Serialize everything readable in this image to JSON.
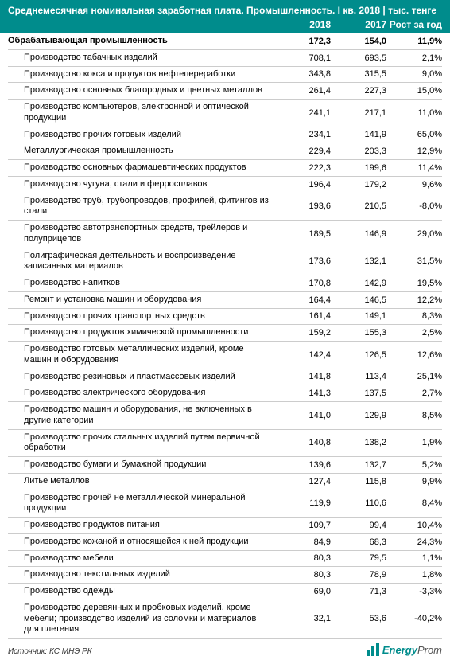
{
  "header": {
    "title": "Среднемесячная номинальная заработная плата. Промышленность. I кв. 2018 | тыс. тенге",
    "col_2018": "2018",
    "col_2017": "2017",
    "col_growth": "Рост за год"
  },
  "rows": [
    {
      "main": true,
      "name": "Обрабатывающая промышленность",
      "v2018": "172,3",
      "v2017": "154,0",
      "growth": "11,9%"
    },
    {
      "main": false,
      "name": "Производство табачных изделий",
      "v2018": "708,1",
      "v2017": "693,5",
      "growth": "2,1%"
    },
    {
      "main": false,
      "name": "Производство кокса и продуктов нефтепереработки",
      "v2018": "343,8",
      "v2017": "315,5",
      "growth": "9,0%"
    },
    {
      "main": false,
      "name": "Производство основных благородных и цветных металлов",
      "v2018": "261,4",
      "v2017": "227,3",
      "growth": "15,0%"
    },
    {
      "main": false,
      "name": "Производство компьютеров, электронной и оптической продукции",
      "v2018": "241,1",
      "v2017": "217,1",
      "growth": "11,0%"
    },
    {
      "main": false,
      "name": "Производство прочих готовых изделий",
      "v2018": "234,1",
      "v2017": "141,9",
      "growth": "65,0%"
    },
    {
      "main": false,
      "name": "Металлургическая промышленность",
      "v2018": "229,4",
      "v2017": "203,3",
      "growth": "12,9%"
    },
    {
      "main": false,
      "name": "Производство основных фармацевтических продуктов",
      "v2018": "222,3",
      "v2017": "199,6",
      "growth": "11,4%"
    },
    {
      "main": false,
      "name": "Производство чугуна, стали и ферросплавов",
      "v2018": "196,4",
      "v2017": "179,2",
      "growth": "9,6%"
    },
    {
      "main": false,
      "name": "Производство труб, трубопроводов, профилей, фитингов из стали",
      "v2018": "193,6",
      "v2017": "210,5",
      "growth": "-8,0%"
    },
    {
      "main": false,
      "name": "Производство автотранспортных средств, трейлеров и полуприцепов",
      "v2018": "189,5",
      "v2017": "146,9",
      "growth": "29,0%"
    },
    {
      "main": false,
      "name": "Полиграфическая деятельность и воспроизведение записанных материалов",
      "v2018": "173,6",
      "v2017": "132,1",
      "growth": "31,5%"
    },
    {
      "main": false,
      "name": "Производство напитков",
      "v2018": "170,8",
      "v2017": "142,9",
      "growth": "19,5%"
    },
    {
      "main": false,
      "name": "Ремонт и установка машин и оборудования",
      "v2018": "164,4",
      "v2017": "146,5",
      "growth": "12,2%"
    },
    {
      "main": false,
      "name": "Производство прочих транспортных средств",
      "v2018": "161,4",
      "v2017": "149,1",
      "growth": "8,3%"
    },
    {
      "main": false,
      "name": "Производство продуктов химической промышленности",
      "v2018": "159,2",
      "v2017": "155,3",
      "growth": "2,5%"
    },
    {
      "main": false,
      "name": "Производство готовых металлических изделий, кроме машин и оборудования",
      "v2018": "142,4",
      "v2017": "126,5",
      "growth": "12,6%"
    },
    {
      "main": false,
      "name": "Производство резиновых и пластмассовых изделий",
      "v2018": "141,8",
      "v2017": "113,4",
      "growth": "25,1%"
    },
    {
      "main": false,
      "name": "Производство электрического оборудования",
      "v2018": "141,3",
      "v2017": "137,5",
      "growth": "2,7%"
    },
    {
      "main": false,
      "name": "Производство машин и оборудования, не включенных в другие категории",
      "v2018": "141,0",
      "v2017": "129,9",
      "growth": "8,5%"
    },
    {
      "main": false,
      "name": "Производство прочих стальных изделий путем первичной обработки",
      "v2018": "140,8",
      "v2017": "138,2",
      "growth": "1,9%"
    },
    {
      "main": false,
      "name": "Производство бумаги и бумажной продукции",
      "v2018": "139,6",
      "v2017": "132,7",
      "growth": "5,2%"
    },
    {
      "main": false,
      "name": "Литье металлов",
      "v2018": "127,4",
      "v2017": "115,8",
      "growth": "9,9%"
    },
    {
      "main": false,
      "name": "Производство прочей не металлической минеральной продукции",
      "v2018": "119,9",
      "v2017": "110,6",
      "growth": "8,4%"
    },
    {
      "main": false,
      "name": "Производство продуктов питания",
      "v2018": "109,7",
      "v2017": "99,4",
      "growth": "10,4%"
    },
    {
      "main": false,
      "name": "Производство кожаной и относящейся к ней продукции",
      "v2018": "84,9",
      "v2017": "68,3",
      "growth": "24,3%"
    },
    {
      "main": false,
      "name": "Производство мебели",
      "v2018": "80,3",
      "v2017": "79,5",
      "growth": "1,1%"
    },
    {
      "main": false,
      "name": "Производство текстильных изделий",
      "v2018": "80,3",
      "v2017": "78,9",
      "growth": "1,8%"
    },
    {
      "main": false,
      "name": "Производство одежды",
      "v2018": "69,0",
      "v2017": "71,3",
      "growth": "-3,3%"
    },
    {
      "main": false,
      "name": "Производство деревянных и пробковых изделий, кроме мебели; производство изделий из соломки и материалов для плетения",
      "v2018": "32,1",
      "v2017": "53,6",
      "growth": "-40,2%"
    }
  ],
  "footer": {
    "source": "Источник: КС МНЭ РК",
    "logo_energy": "Energy",
    "logo_prom": "Prom"
  },
  "colors": {
    "header_bg": "#008c8c",
    "border": "#cccccc"
  }
}
